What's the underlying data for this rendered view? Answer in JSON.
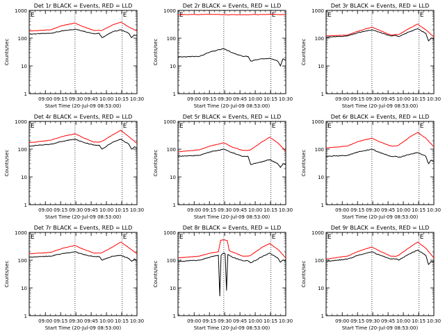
{
  "common": {
    "y_label": "Counts/sec",
    "x_label": "Start Time (20-Jul-09 08:53:00)",
    "x_ticks": [
      "09:00",
      "09:15",
      "09:30",
      "09:45",
      "10:00",
      "10:15",
      "10:30"
    ],
    "y_ticks": [
      "1",
      "10",
      "100",
      "1000"
    ],
    "marker": "E",
    "colors": {
      "events": "#000000",
      "lld": "#ff0000"
    }
  },
  "chart_data": [
    {
      "type": "line",
      "title": "Det 1r BLACK = Events, RED = LLD",
      "x_unit": "minutes after 09:00",
      "xlim": [
        -6,
        34
      ],
      "ylim": [
        1,
        1000
      ],
      "y_scale": "log",
      "grid": false,
      "vlines": [
        11,
        28.5
      ],
      "series": [
        {
          "name": "Events",
          "x": [
            -6,
            2,
            6,
            11,
            14,
            18,
            20,
            21,
            25,
            28,
            31,
            32,
            33,
            34
          ],
          "y": [
            140,
            150,
            180,
            210,
            180,
            145,
            150,
            105,
            170,
            200,
            150,
            105,
            130,
            120
          ]
        },
        {
          "name": "LLD",
          "x": [
            -6,
            2,
            6,
            11,
            14,
            18,
            20,
            21,
            25,
            28,
            31,
            34
          ],
          "y": [
            180,
            200,
            280,
            350,
            260,
            190,
            190,
            190,
            300,
            380,
            250,
            180
          ]
        }
      ]
    },
    {
      "type": "line",
      "title": "Det 2r BLACK = Events, RED = LLD",
      "x_unit": "minutes after 09:00",
      "xlim": [
        -6,
        34
      ],
      "ylim": [
        1,
        1000
      ],
      "y_scale": "log",
      "grid": false,
      "vlines": [
        11,
        28.5
      ],
      "series": [
        {
          "name": "Events",
          "x": [
            -6,
            2,
            6,
            11,
            14,
            18,
            20,
            21,
            25,
            28,
            31,
            32,
            33,
            34
          ],
          "y": [
            21,
            22,
            32,
            42,
            30,
            22,
            22,
            15,
            18,
            19,
            15,
            10,
            18,
            16
          ]
        },
        {
          "name": "LLD",
          "x": [
            -6,
            6,
            11,
            20,
            28,
            34
          ],
          "y": [
            700,
            720,
            700,
            700,
            720,
            700
          ]
        }
      ]
    },
    {
      "type": "line",
      "title": "Det 3r BLACK = Events, RED = LLD",
      "x_unit": "minutes after 09:00",
      "xlim": [
        -6,
        34
      ],
      "ylim": [
        1,
        1000
      ],
      "y_scale": "log",
      "grid": false,
      "vlines": [
        11,
        28.5
      ],
      "series": [
        {
          "name": "Events",
          "x": [
            -6,
            2,
            6,
            11,
            14,
            18,
            20,
            21,
            25,
            28,
            31,
            32,
            33,
            34
          ],
          "y": [
            110,
            120,
            160,
            200,
            160,
            120,
            125,
            115,
            170,
            220,
            150,
            80,
            100,
            95
          ]
        },
        {
          "name": "LLD",
          "x": [
            -6,
            2,
            6,
            11,
            14,
            18,
            20,
            21,
            25,
            28,
            31,
            34
          ],
          "y": [
            120,
            130,
            180,
            250,
            190,
            130,
            135,
            135,
            230,
            320,
            200,
            110
          ]
        }
      ]
    },
    {
      "type": "line",
      "title": "Det 4r BLACK = Events, RED = LLD",
      "x_unit": "minutes after 09:00",
      "xlim": [
        -6,
        34
      ],
      "ylim": [
        1,
        1000
      ],
      "y_scale": "log",
      "grid": false,
      "vlines": [
        11,
        28.5
      ],
      "series": [
        {
          "name": "Events",
          "x": [
            -6,
            2,
            6,
            11,
            14,
            18,
            20,
            21,
            25,
            28,
            31,
            32,
            33,
            34
          ],
          "y": [
            130,
            150,
            190,
            230,
            180,
            140,
            140,
            100,
            180,
            230,
            150,
            100,
            120,
            110
          ]
        },
        {
          "name": "LLD",
          "x": [
            -6,
            2,
            6,
            11,
            14,
            18,
            20,
            21,
            25,
            28,
            31,
            34
          ],
          "y": [
            170,
            210,
            280,
            360,
            260,
            180,
            180,
            190,
            330,
            480,
            280,
            160
          ]
        }
      ]
    },
    {
      "type": "line",
      "title": "Det 5r BLACK = Events, RED = LLD",
      "x_unit": "minutes after 09:00",
      "xlim": [
        -6,
        34
      ],
      "ylim": [
        1,
        1000
      ],
      "y_scale": "log",
      "grid": false,
      "vlines": [
        11,
        28.5
      ],
      "series": [
        {
          "name": "Events",
          "x": [
            -6,
            2,
            6,
            11,
            14,
            18,
            20,
            21,
            25,
            28,
            31,
            32,
            33,
            34
          ],
          "y": [
            55,
            60,
            80,
            100,
            75,
            55,
            55,
            28,
            35,
            42,
            30,
            22,
            30,
            28
          ]
        },
        {
          "name": "LLD",
          "x": [
            -6,
            2,
            6,
            11,
            14,
            18,
            20,
            21,
            25,
            28,
            31,
            34
          ],
          "y": [
            80,
            95,
            130,
            170,
            120,
            90,
            90,
            95,
            180,
            270,
            170,
            85
          ]
        }
      ]
    },
    {
      "type": "line",
      "title": "Det 6r BLACK = Events, RED = LLD",
      "x_unit": "minutes after 09:00",
      "xlim": [
        -6,
        34
      ],
      "ylim": [
        1,
        1000
      ],
      "y_scale": "log",
      "grid": false,
      "vlines": [
        11,
        28.5
      ],
      "series": [
        {
          "name": "Events",
          "x": [
            -6,
            2,
            6,
            11,
            14,
            18,
            20,
            21,
            25,
            28,
            31,
            32,
            33,
            34
          ],
          "y": [
            55,
            60,
            80,
            100,
            75,
            55,
            55,
            50,
            65,
            75,
            55,
            30,
            40,
            35
          ]
        },
        {
          "name": "LLD",
          "x": [
            -6,
            2,
            6,
            11,
            14,
            18,
            20,
            21,
            25,
            28,
            31,
            34
          ],
          "y": [
            110,
            130,
            190,
            250,
            180,
            130,
            130,
            140,
            270,
            400,
            250,
            120
          ]
        }
      ]
    },
    {
      "type": "line",
      "title": "Det 7r BLACK = Events, RED = LLD",
      "x_unit": "minutes after 09:00",
      "xlim": [
        -6,
        34
      ],
      "ylim": [
        1,
        1000
      ],
      "y_scale": "log",
      "grid": false,
      "vlines": [
        11,
        28.5
      ],
      "series": [
        {
          "name": "Events",
          "x": [
            -6,
            2,
            6,
            11,
            14,
            18,
            20,
            21,
            25,
            28,
            31,
            32,
            33,
            34
          ],
          "y": [
            130,
            140,
            170,
            200,
            160,
            135,
            135,
            100,
            140,
            150,
            115,
            90,
            110,
            100
          ]
        },
        {
          "name": "LLD",
          "x": [
            -6,
            2,
            6,
            11,
            14,
            18,
            20,
            21,
            25,
            28,
            31,
            34
          ],
          "y": [
            170,
            190,
            260,
            340,
            250,
            180,
            180,
            185,
            300,
            450,
            280,
            170
          ]
        }
      ]
    },
    {
      "type": "line",
      "title": "Det 8r BLACK = Events, RED = LLD",
      "x_unit": "minutes after 09:00",
      "xlim": [
        -6,
        34
      ],
      "ylim": [
        1,
        1000
      ],
      "y_scale": "log",
      "grid": false,
      "vlines": [
        11,
        28.5
      ],
      "series": [
        {
          "name": "Events",
          "x": [
            -6,
            2,
            6,
            9,
            9.5,
            10,
            10.5,
            11,
            11.5,
            12,
            12.5,
            13,
            14,
            18,
            20,
            21,
            25,
            28,
            31,
            32,
            33,
            34
          ],
          "y": [
            90,
            100,
            130,
            150,
            5,
            150,
            170,
            180,
            170,
            8,
            160,
            150,
            130,
            95,
            95,
            80,
            130,
            180,
            120,
            85,
            100,
            95
          ]
        },
        {
          "name": "LLD",
          "x": [
            -6,
            2,
            6,
            9,
            9.8,
            10.5,
            11.5,
            12.3,
            13,
            14,
            18,
            20,
            21,
            25,
            28,
            31,
            34
          ],
          "y": [
            120,
            140,
            180,
            200,
            520,
            540,
            530,
            510,
            220,
            200,
            140,
            140,
            150,
            280,
            400,
            250,
            120
          ]
        }
      ]
    },
    {
      "type": "line",
      "title": "Det 9r BLACK = Events, RED = LLD",
      "x_unit": "minutes after 09:00",
      "xlim": [
        -6,
        34
      ],
      "ylim": [
        1,
        1000
      ],
      "y_scale": "log",
      "grid": false,
      "vlines": [
        11,
        28.5
      ],
      "series": [
        {
          "name": "Events",
          "x": [
            -6,
            2,
            6,
            11,
            14,
            18,
            20,
            21,
            25,
            28,
            31,
            32,
            33,
            34
          ],
          "y": [
            90,
            110,
            150,
            200,
            150,
            110,
            110,
            100,
            170,
            230,
            150,
            70,
            90,
            85
          ]
        },
        {
          "name": "LLD",
          "x": [
            -6,
            2,
            6,
            11,
            14,
            18,
            20,
            21,
            25,
            28,
            31,
            34
          ],
          "y": [
            110,
            140,
            210,
            300,
            210,
            140,
            140,
            150,
            290,
            450,
            270,
            120
          ]
        }
      ]
    }
  ]
}
